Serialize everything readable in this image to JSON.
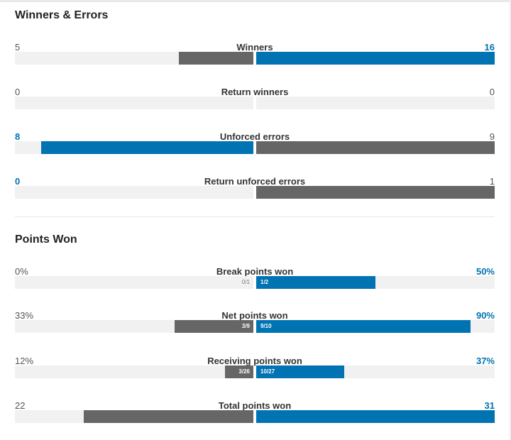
{
  "sections": [
    {
      "title": "Winners & Errors",
      "stats": [
        {
          "label": "Winners",
          "left": "5",
          "right": "16",
          "left_pct": 31.25,
          "right_pct": 100,
          "winner": "right",
          "left_frac": "",
          "right_frac": ""
        },
        {
          "label": "Return winners",
          "left": "0",
          "right": "0",
          "left_pct": 0,
          "right_pct": 0,
          "winner": "",
          "left_frac": "",
          "right_frac": ""
        },
        {
          "label": "Unforced errors",
          "left": "8",
          "right": "9",
          "left_pct": 88.9,
          "right_pct": 100,
          "winner": "left",
          "left_frac": "",
          "right_frac": ""
        },
        {
          "label": "Return unforced errors",
          "left": "0",
          "right": "1",
          "left_pct": 0,
          "right_pct": 100,
          "winner": "left",
          "left_frac": "",
          "right_frac": ""
        }
      ]
    },
    {
      "title": "Points Won",
      "stats": [
        {
          "label": "Break points won",
          "left": "0%",
          "right": "50%",
          "left_pct": 0,
          "right_pct": 50,
          "winner": "right",
          "left_frac": "0/1",
          "right_frac": "1/2"
        },
        {
          "label": "Net points won",
          "left": "33%",
          "right": "90%",
          "left_pct": 33,
          "right_pct": 90,
          "winner": "right",
          "left_frac": "3/9",
          "right_frac": "9/10"
        },
        {
          "label": "Receiving points won",
          "left": "12%",
          "right": "37%",
          "left_pct": 12,
          "right_pct": 37,
          "winner": "right",
          "left_frac": "3/26",
          "right_frac": "10/27"
        },
        {
          "label": "Total points won",
          "left": "22",
          "right": "31",
          "left_pct": 71,
          "right_pct": 100,
          "winner": "right",
          "left_frac": "",
          "right_frac": ""
        }
      ]
    }
  ],
  "colors": {
    "winner_blue": "#0073b3",
    "loser_grey": "#666666",
    "track": "#f1f1f1"
  }
}
